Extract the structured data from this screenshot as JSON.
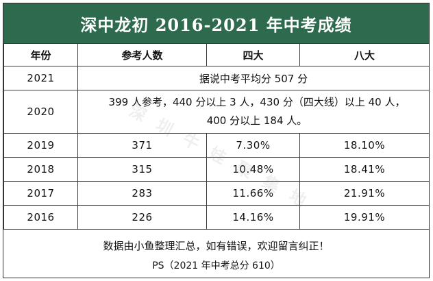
{
  "title": "深中龙初 2016-2021 年中考成绩",
  "headers": [
    "年份",
    "参考人数",
    "四大",
    "八大"
  ],
  "row_2021": {
    "year": "2021",
    "note": "据说中考平均分 507 分"
  },
  "row_2020": {
    "year": "2020",
    "note_line1": "399 人参考，440 分以上 3 人，430 分（四大线）以上 40 人，",
    "note_line2": "400 分以上 184 人。"
  },
  "rows": [
    {
      "year": "2019",
      "count": "371",
      "four": "7.30%",
      "eight": "18.10%"
    },
    {
      "year": "2018",
      "count": "315",
      "four": "10.48%",
      "eight": "18.41%"
    },
    {
      "year": "2017",
      "count": "283",
      "four": "11.66%",
      "eight": "21.91%"
    },
    {
      "year": "2016",
      "count": "226",
      "four": "14.16%",
      "eight": "19.91%"
    }
  ],
  "footer": {
    "line1": "数据由小鱼整理汇总，如有错误，欢迎留言纠正！",
    "line2": "PS（2021 年中考总分 610）"
  },
  "watermark": "深圳牛娃聚集地",
  "colors": {
    "title_bg": "#2e6b4e",
    "title_fg": "#ffffff"
  }
}
